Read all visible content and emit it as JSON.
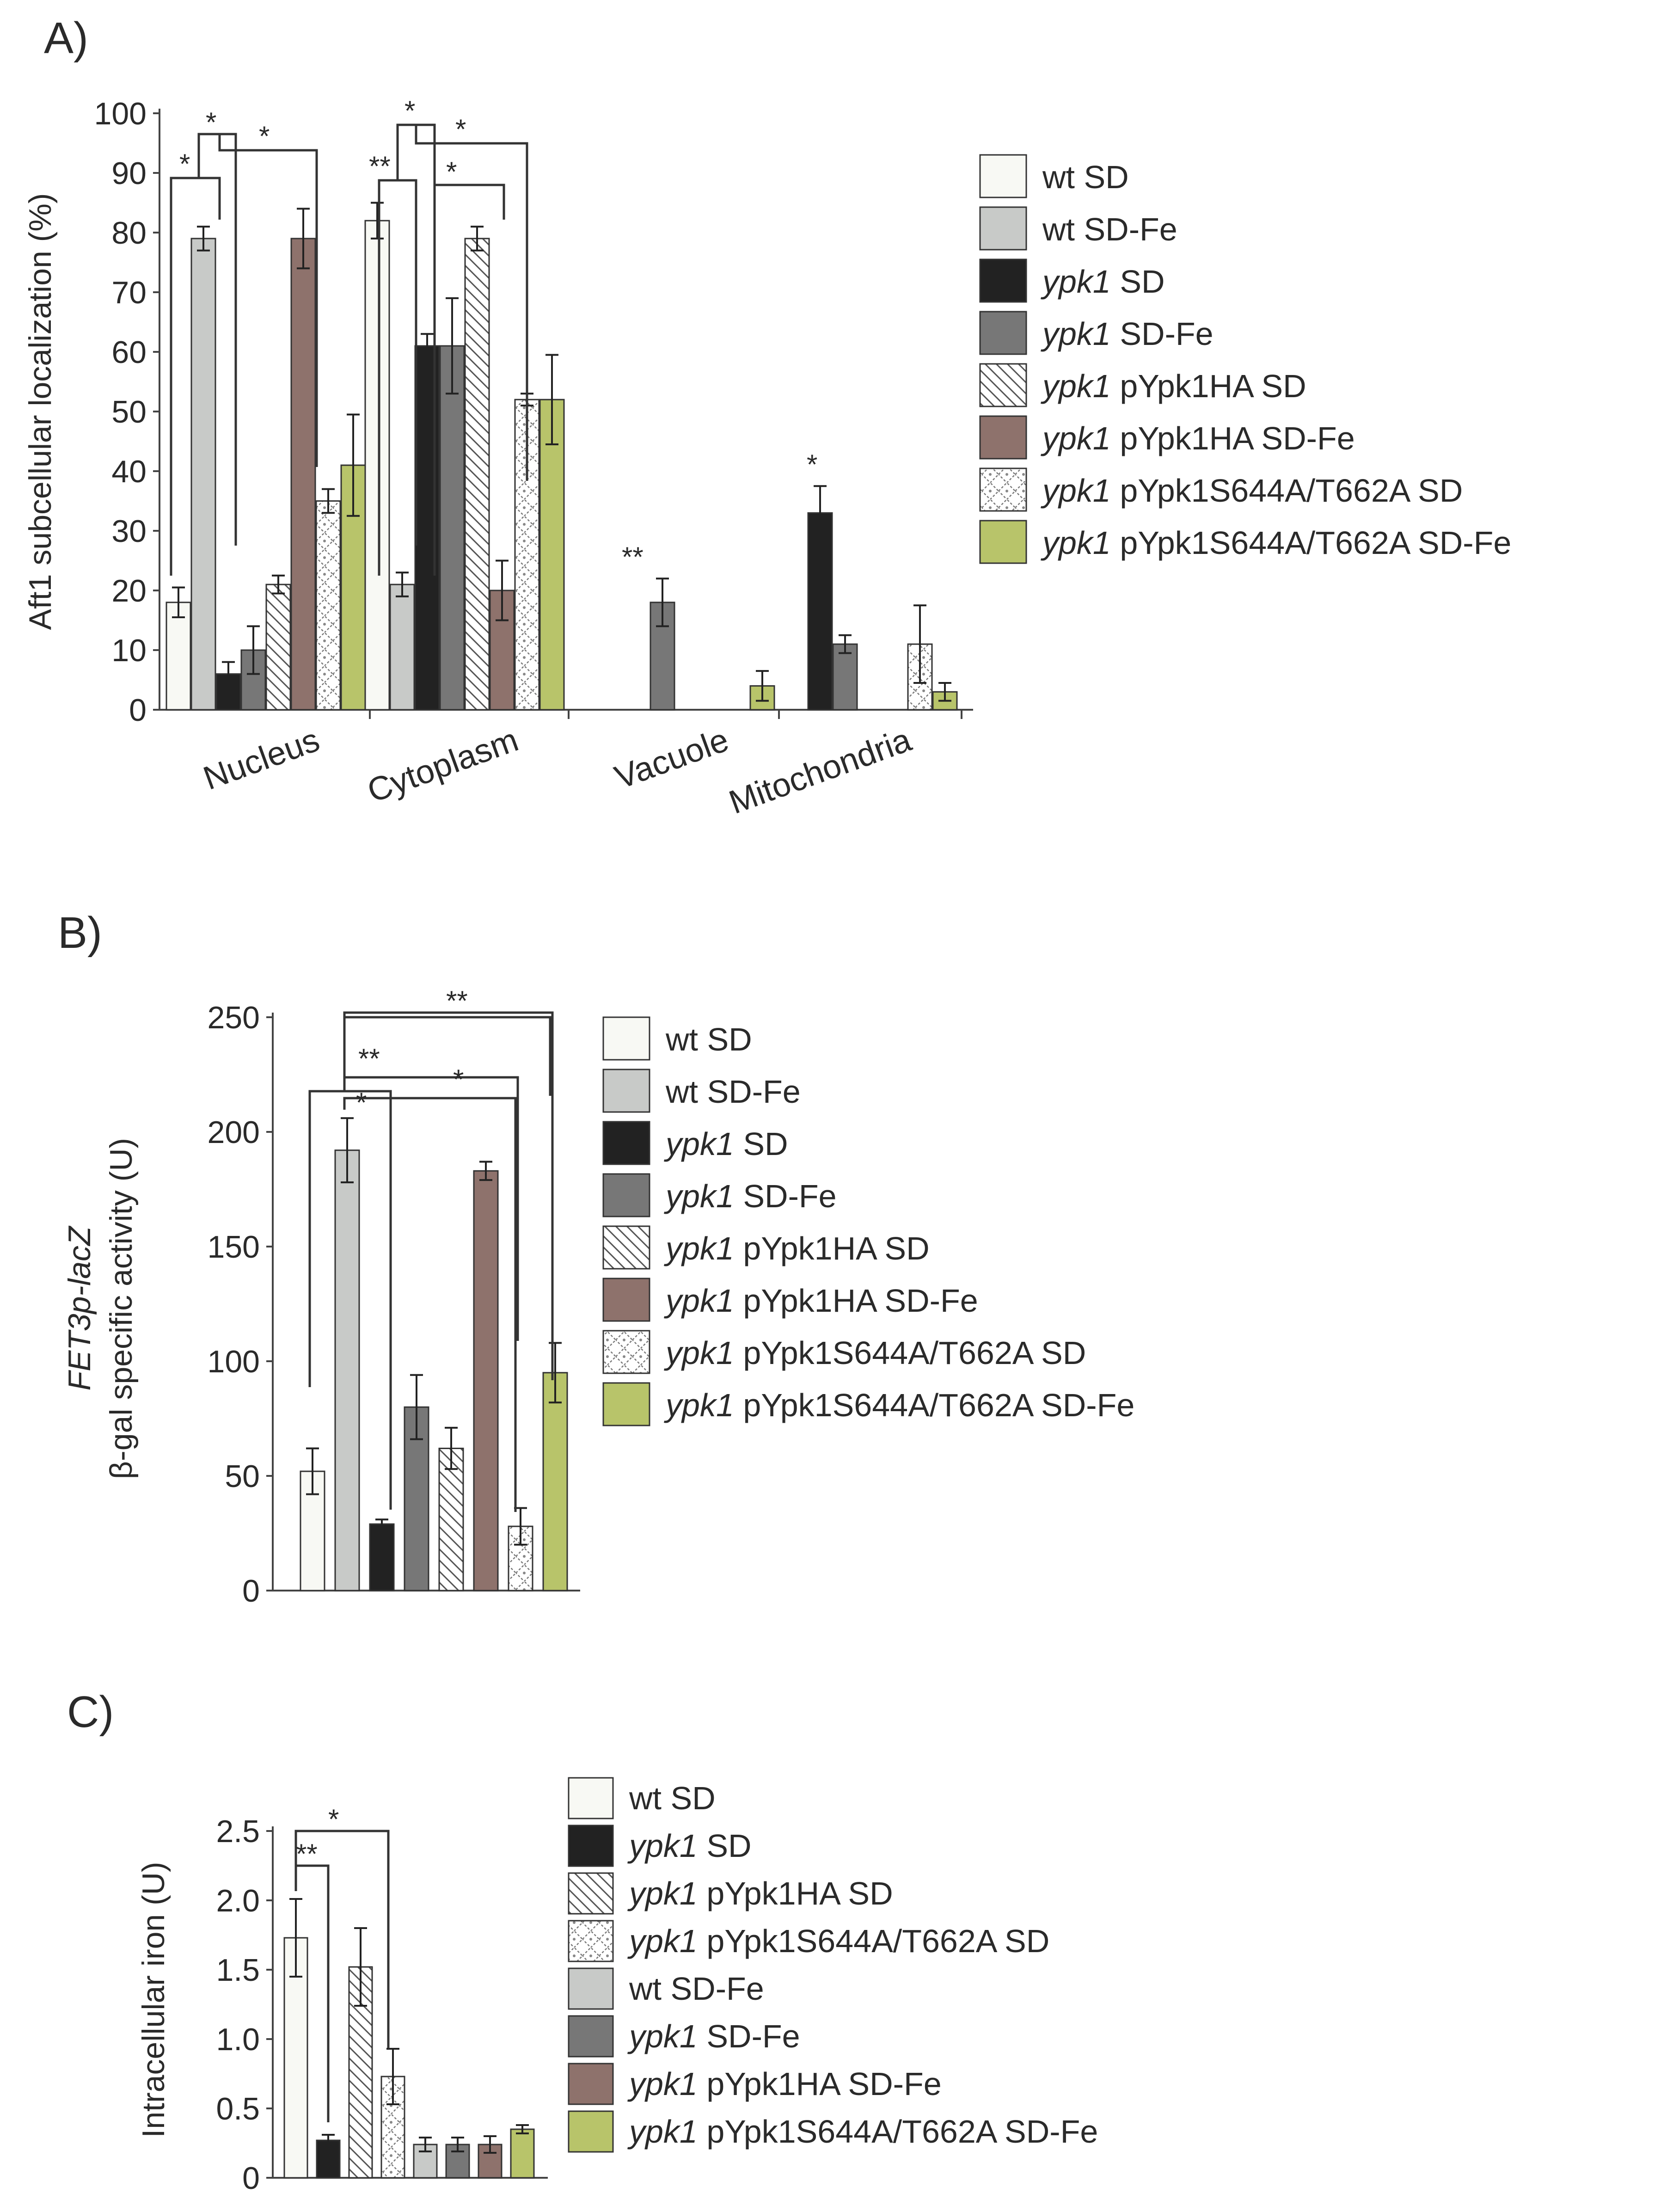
{
  "chart_data": [
    {
      "id": "A",
      "panel_label": "A)",
      "type": "bar",
      "ylabel": "Aft1 subcellular localization (%)",
      "ylim": [
        0,
        100
      ],
      "yticks": [
        0,
        10,
        20,
        30,
        40,
        50,
        60,
        70,
        80,
        90,
        100
      ],
      "categories": [
        "Nucleus",
        "Cytoplasm",
        "Vacuole",
        "Mitochondria"
      ],
      "series": [
        {
          "name": "wt SD",
          "italic": "",
          "rest": "wt SD",
          "fill": "#f8f9f4",
          "pattern": "none",
          "values": [
            18,
            82,
            null,
            null
          ],
          "errors": [
            2.5,
            3,
            null,
            null
          ]
        },
        {
          "name": "wt SD-Fe",
          "italic": "",
          "rest": "wt SD-Fe",
          "fill": "#c8cac8",
          "pattern": "none",
          "values": [
            79,
            21,
            null,
            null
          ],
          "errors": [
            2,
            2,
            null,
            null
          ]
        },
        {
          "name": "ypk1 SD",
          "italic": "ypk1",
          "rest": " SD",
          "fill": "#222222",
          "pattern": "none",
          "values": [
            6,
            61,
            null,
            33
          ],
          "errors": [
            2,
            2,
            null,
            4.5
          ]
        },
        {
          "name": "ypk1 SD-Fe",
          "italic": "ypk1",
          "rest": " SD-Fe",
          "fill": "#777777",
          "pattern": "none",
          "values": [
            10,
            61,
            18,
            11
          ],
          "errors": [
            4,
            8,
            4,
            1.5
          ]
        },
        {
          "name": "ypk1 pYpk1HA SD",
          "italic": "ypk1",
          "rest": " pYpk1HA SD",
          "fill": "#ffffff",
          "pattern": "diag",
          "values": [
            21,
            79,
            null,
            null
          ],
          "errors": [
            1.5,
            2,
            null,
            null
          ]
        },
        {
          "name": "ypk1 pYpk1HA SD-Fe",
          "italic": "ypk1",
          "rest": " pYpk1HA SD-Fe",
          "fill": "#8e726c",
          "pattern": "none",
          "values": [
            79,
            20,
            null,
            null
          ],
          "errors": [
            5,
            5,
            null,
            null
          ]
        },
        {
          "name": "ypk1 pYpk1S644A/T662A SD",
          "italic": "ypk1",
          "rest": " pYpk1S644A/T662A SD",
          "fill": "#ffffff",
          "pattern": "lattice",
          "values": [
            35,
            52,
            null,
            11
          ],
          "errors": [
            2,
            1,
            null,
            6.5
          ]
        },
        {
          "name": "ypk1 pYpk1S644A/T662A SD-Fe",
          "italic": "ypk1",
          "rest": " pYpk1S644A/T662A SD-Fe",
          "fill": "#b8c46a",
          "pattern": "none",
          "values": [
            41,
            52,
            4,
            3
          ],
          "errors": [
            8.5,
            7.5,
            2.5,
            1.5
          ]
        }
      ],
      "annotations": [
        "*",
        "*",
        "*",
        "**",
        "*",
        "*",
        "*",
        "**",
        "*"
      ]
    },
    {
      "id": "B",
      "panel_label": "B)",
      "type": "bar",
      "ylabel_italic": "FET3p-lacZ",
      "ylabel": "β-gal specific activity (U)",
      "ylim": [
        0,
        250
      ],
      "yticks": [
        0,
        50,
        100,
        150,
        200,
        250
      ],
      "categories": [
        "wt SD",
        "wt SD-Fe",
        "ypk1 SD",
        "ypk1 SD-Fe",
        "ypk1 pYpk1HA SD",
        "ypk1 pYpk1HA SD-Fe",
        "ypk1 pYpk1S644A/T662A SD",
        "ypk1 pYpk1S644A/T662A SD-Fe"
      ],
      "series": [
        {
          "name": "wt SD",
          "italic": "",
          "rest": "wt SD",
          "fill": "#f8f9f4",
          "pattern": "none",
          "value": 52,
          "error": 10
        },
        {
          "name": "wt SD-Fe",
          "italic": "",
          "rest": "wt SD-Fe",
          "fill": "#c8cac8",
          "pattern": "none",
          "value": 192,
          "error": 14
        },
        {
          "name": "ypk1 SD",
          "italic": "ypk1",
          "rest": " SD",
          "fill": "#222222",
          "pattern": "none",
          "value": 29,
          "error": 2
        },
        {
          "name": "ypk1 SD-Fe",
          "italic": "ypk1",
          "rest": " SD-Fe",
          "fill": "#777777",
          "pattern": "none",
          "value": 80,
          "error": 14
        },
        {
          "name": "ypk1 pYpk1HA SD",
          "italic": "ypk1",
          "rest": " pYpk1HA SD",
          "fill": "#ffffff",
          "pattern": "diag",
          "value": 62,
          "error": 9
        },
        {
          "name": "ypk1 pYpk1HA SD-Fe",
          "italic": "ypk1",
          "rest": " pYpk1HA SD-Fe",
          "fill": "#8e726c",
          "pattern": "none",
          "value": 183,
          "error": 4
        },
        {
          "name": "ypk1 pYpk1S644A/T662A SD",
          "italic": "ypk1",
          "rest": " pYpk1S644A/T662A SD",
          "fill": "#ffffff",
          "pattern": "lattice",
          "value": 28,
          "error": 8
        },
        {
          "name": "ypk1 pYpk1S644A/T662A SD-Fe",
          "italic": "ypk1",
          "rest": " pYpk1S644A/T662A SD-Fe",
          "fill": "#b8c46a",
          "pattern": "none",
          "value": 95,
          "error": 13
        }
      ],
      "annotations": [
        "**",
        "**",
        "*",
        "*"
      ]
    },
    {
      "id": "C",
      "panel_label": "C)",
      "type": "bar",
      "ylabel": "Intracellular iron  (U)",
      "ylim": [
        0,
        2.5
      ],
      "yticks": [
        "0",
        "0.5",
        "1.0",
        "1.5",
        "2.0",
        "2.5"
      ],
      "categories": [
        "wt SD",
        "ypk1 SD",
        "ypk1 pYpk1HA SD",
        "ypk1 pYpk1S644A/T662A SD",
        "wt SD-Fe",
        "ypk1 SD-Fe",
        "ypk1 pYpk1HA SD-Fe",
        "ypk1 pYpk1S644A/T662A SD-Fe"
      ],
      "series": [
        {
          "name": "wt SD",
          "italic": "",
          "rest": "wt SD",
          "fill": "#f8f9f4",
          "pattern": "none",
          "value": 1.73,
          "error": 0.28
        },
        {
          "name": "ypk1 SD",
          "italic": "ypk1",
          "rest": " SD",
          "fill": "#222222",
          "pattern": "none",
          "value": 0.27,
          "error": 0.04
        },
        {
          "name": "ypk1 pYpk1HA SD",
          "italic": "ypk1",
          "rest": " pYpk1HA SD",
          "fill": "#ffffff",
          "pattern": "diag",
          "value": 1.52,
          "error": 0.28
        },
        {
          "name": "ypk1 pYpk1S644A/T662A SD",
          "italic": "ypk1",
          "rest": " pYpk1S644A/T662A SD",
          "fill": "#ffffff",
          "pattern": "lattice",
          "value": 0.73,
          "error": 0.2
        },
        {
          "name": "wt SD-Fe",
          "italic": "",
          "rest": "wt SD-Fe",
          "fill": "#c8cac8",
          "pattern": "none",
          "value": 0.24,
          "error": 0.05
        },
        {
          "name": "ypk1 SD-Fe",
          "italic": "ypk1",
          "rest": " SD-Fe",
          "fill": "#777777",
          "pattern": "none",
          "value": 0.24,
          "error": 0.05
        },
        {
          "name": "ypk1 pYpk1HA SD-Fe",
          "italic": "ypk1",
          "rest": " pYpk1HA SD-Fe",
          "fill": "#8e726c",
          "pattern": "none",
          "value": 0.24,
          "error": 0.06
        },
        {
          "name": "ypk1 pYpk1S644A/T662A SD-Fe",
          "italic": "ypk1",
          "rest": " pYpk1S644A/T662A SD-Fe",
          "fill": "#b8c46a",
          "pattern": "none",
          "value": 0.35,
          "error": 0.03
        }
      ],
      "annotations": [
        "**",
        "*"
      ]
    }
  ]
}
